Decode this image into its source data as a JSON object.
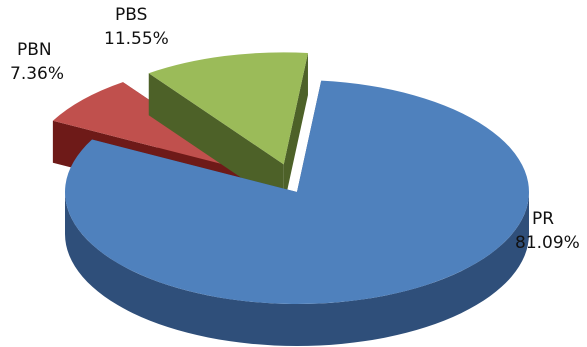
{
  "chart_data": {
    "type": "pie",
    "title": "",
    "slices": [
      {
        "label": "PR",
        "value": 81.09,
        "value_text": "81.09%",
        "color": "#4f81bd",
        "side": "#2f4f7a",
        "exploded": false
      },
      {
        "label": "PBN",
        "value": 7.36,
        "value_text": "7.36%",
        "color": "#c0504d",
        "side": "#6e1a18",
        "exploded": true
      },
      {
        "label": "PBS",
        "value": 11.55,
        "value_text": "11.55%",
        "color": "#9bbb59",
        "side": "#4d6128",
        "exploded": true
      }
    ],
    "style": "3d-exploded",
    "legend": "none"
  }
}
